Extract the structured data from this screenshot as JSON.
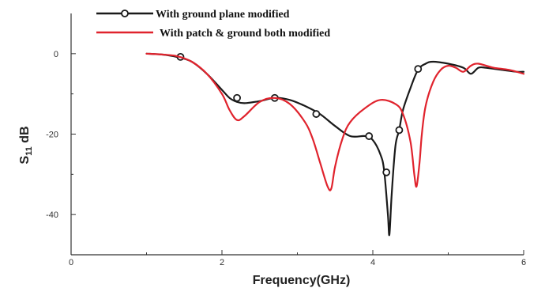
{
  "colors": {
    "series_1": "#1a1a1a",
    "series_2": "#e0232d",
    "axis": "#333333"
  },
  "chart_data": {
    "type": "line",
    "title": "",
    "xlabel": "Frequency(GHz)",
    "ylabel_main": "S",
    "ylabel_sub": "11",
    "ylabel_unit": " dB",
    "xlim": [
      0,
      6
    ],
    "ylim": [
      -50,
      10
    ],
    "x_ticks": [
      0,
      2,
      4,
      6
    ],
    "x_minor_ticks": [
      1,
      3,
      5
    ],
    "y_ticks": [
      0,
      -20,
      -40
    ],
    "y_minor_ticks": [
      -10,
      -30
    ],
    "grid": false,
    "legend_position": "top-left",
    "series": [
      {
        "name": "With ground plane modified",
        "color": "#1a1a1a",
        "marker": "circle",
        "x": [
          1.0,
          1.2,
          1.4,
          1.6,
          1.8,
          2.0,
          2.1,
          2.2,
          2.3,
          2.5,
          2.7,
          2.9,
          3.1,
          3.3,
          3.5,
          3.7,
          3.9,
          4.0,
          4.1,
          4.15,
          4.2,
          4.22,
          4.25,
          4.3,
          4.35,
          4.4,
          4.5,
          4.6,
          4.7,
          4.8,
          5.0,
          5.2,
          5.3,
          5.4,
          5.5,
          5.7,
          5.9,
          6.0
        ],
        "y": [
          0,
          -0.2,
          -0.8,
          -2.0,
          -5.0,
          -9.0,
          -11.0,
          -12.0,
          -12.3,
          -11.8,
          -11.0,
          -11.5,
          -13.0,
          -15.0,
          -18.0,
          -20.5,
          -20.5,
          -21.5,
          -25.0,
          -29.0,
          -40.0,
          -45.0,
          -35.0,
          -23.0,
          -19.0,
          -14.0,
          -8.5,
          -4.0,
          -2.5,
          -2.0,
          -2.5,
          -3.5,
          -5.0,
          -3.5,
          -3.5,
          -4.0,
          -4.5,
          -4.5
        ],
        "marker_x": [
          1.45,
          2.2,
          2.7,
          3.25,
          3.95,
          4.18,
          4.35,
          4.6
        ],
        "marker_y": [
          -0.8,
          -11.0,
          -11.0,
          -15.0,
          -20.5,
          -29.5,
          -19.0,
          -3.8
        ]
      },
      {
        "name": "With patch & ground both modified",
        "color": "#e0232d",
        "marker": "none",
        "x": [
          1.0,
          1.2,
          1.4,
          1.6,
          1.8,
          2.0,
          2.1,
          2.2,
          2.3,
          2.5,
          2.7,
          2.9,
          3.1,
          3.2,
          3.3,
          3.4,
          3.45,
          3.5,
          3.6,
          3.7,
          3.9,
          4.1,
          4.3,
          4.4,
          4.5,
          4.55,
          4.58,
          4.62,
          4.65,
          4.7,
          4.8,
          4.9,
          5.0,
          5.1,
          5.2,
          5.3,
          5.4,
          5.6,
          5.8,
          6.0
        ],
        "y": [
          0,
          -0.2,
          -0.6,
          -2.0,
          -5.0,
          -10.0,
          -14.0,
          -16.5,
          -15.5,
          -12.0,
          -11.0,
          -12.5,
          -17.0,
          -21.0,
          -27.0,
          -33.0,
          -33.5,
          -28.0,
          -21.0,
          -17.0,
          -13.5,
          -11.5,
          -12.5,
          -15.0,
          -22.0,
          -30.0,
          -33.0,
          -27.0,
          -20.0,
          -13.0,
          -7.0,
          -4.0,
          -3.0,
          -3.5,
          -4.5,
          -3.0,
          -2.5,
          -3.5,
          -4.0,
          -5.0
        ]
      }
    ]
  }
}
